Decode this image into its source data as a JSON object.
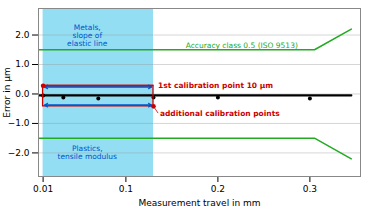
{
  "chart_data": {
    "type": "line",
    "xlabel": "Measurement travel in mm",
    "ylabel": "Error in μm",
    "xlim": [
      0.005,
      0.355
    ],
    "ylim": [
      -2.8,
      2.9
    ],
    "xticks": [
      0.01,
      0.1,
      0.2,
      0.3
    ],
    "yticks": [
      -2,
      -1,
      0,
      1,
      2
    ],
    "grid": "y",
    "shaded_region": {
      "x": [
        0.01,
        0.13
      ],
      "color": "#80d8f0"
    },
    "series": [
      {
        "type": "line",
        "color": "#22aa22",
        "x": [
          0.005,
          0.305,
          0.345
        ],
        "values": [
          1.5,
          1.5,
          2.2
        ]
      },
      {
        "type": "line",
        "color": "#22aa22",
        "x": [
          0.005,
          0.305,
          0.345
        ],
        "values": [
          -1.5,
          -1.5,
          -2.2
        ]
      },
      {
        "type": "line",
        "color": "black",
        "x": [
          0.005,
          0.345
        ],
        "values": [
          -0.05,
          -0.05
        ]
      },
      {
        "type": "scatter",
        "color": "black",
        "x": [
          0.01,
          0.032,
          0.07,
          0.13,
          0.2,
          0.3
        ],
        "values": [
          -0.05,
          -0.12,
          -0.15,
          -0.12,
          -0.12,
          -0.15
        ]
      }
    ],
    "rectangle": {
      "x": [
        0.01,
        0.13
      ],
      "y": [
        -0.42,
        0.28
      ],
      "color": "#cc0000"
    },
    "arrows": {
      "x": [
        0.0115,
        0.128
      ],
      "y": [
        0.24,
        -0.38
      ],
      "color": "#0055cc"
    },
    "annotations": [
      {
        "text": "Accuracy class 0.5 (ISO 9513)",
        "x": 0.165,
        "y": 1.55,
        "color": "#22aa22"
      },
      {
        "text": "1st calibration point 10 μm",
        "x": 0.135,
        "y": 0.28,
        "color": "#cc0000",
        "point": [
          0.01,
          0.28
        ],
        "line_to": [
          0.13,
          0.28
        ]
      },
      {
        "text": "additional calibration points",
        "x": 0.137,
        "y": -0.65,
        "color": "#cc0000",
        "point": [
          0.13,
          -0.42
        ],
        "line_to": [
          0.135,
          -0.65
        ]
      },
      {
        "text": "Metals,\nslope of\nelastic line",
        "x": 0.058,
        "y": 2.35,
        "color": "#0055cc"
      },
      {
        "text": "Plastics,\ntensile modulus",
        "x": 0.058,
        "y": -1.75,
        "color": "#0055cc"
      }
    ]
  }
}
